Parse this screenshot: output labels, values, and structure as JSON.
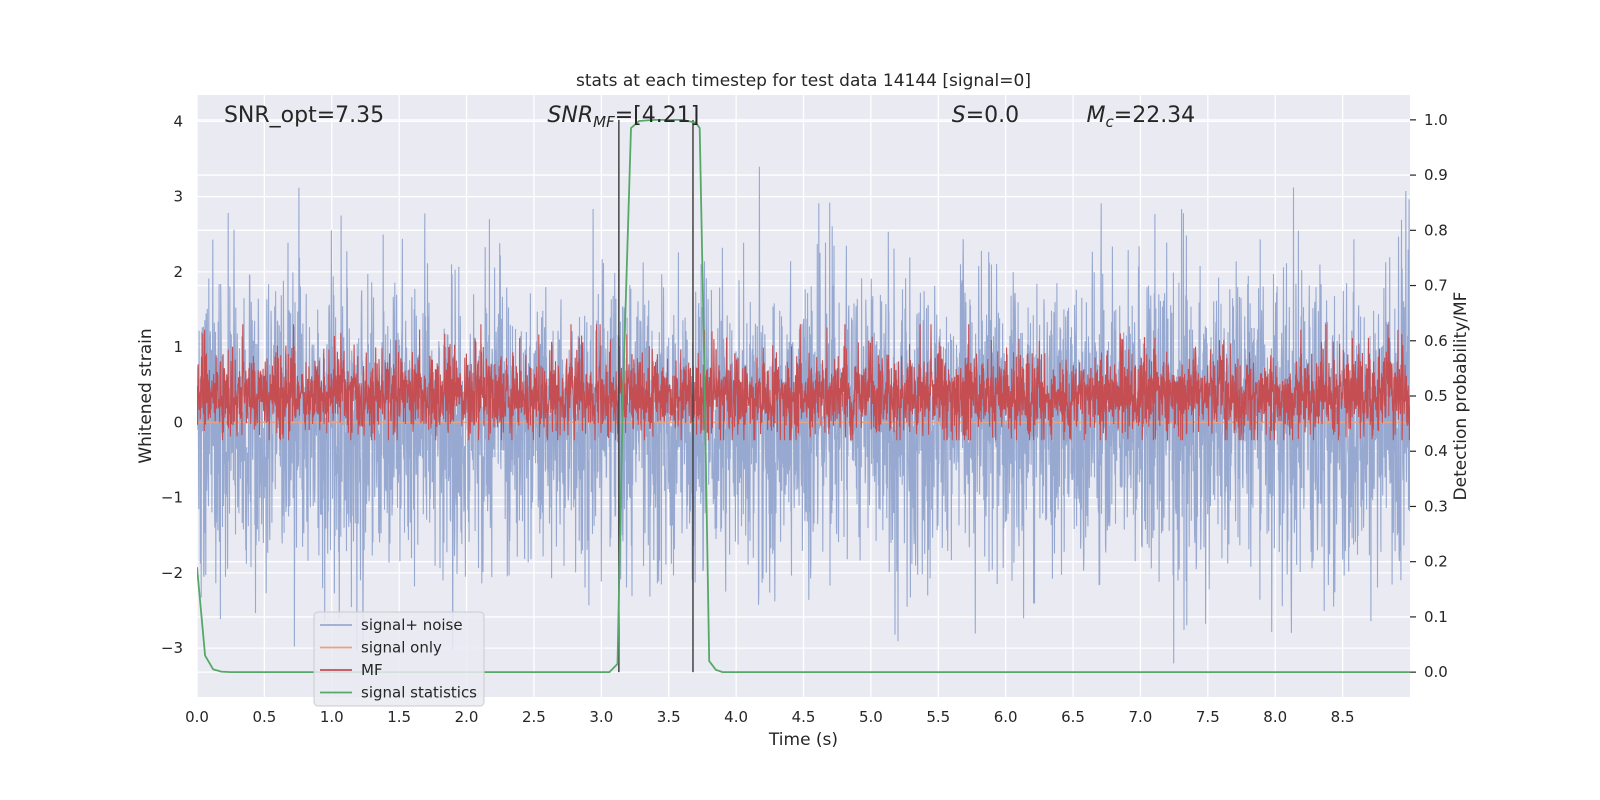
{
  "chart_data": {
    "type": "line",
    "title": "stats at each timestep for test data 14144 [signal=0]",
    "xlabel": "Time (s)",
    "ylabel": "Whitened strain",
    "y2label": "Detection probability/MF",
    "xlim": [
      0.0,
      9.0
    ],
    "ylim": [
      -3.65,
      4.35
    ],
    "y2lim": [
      -0.045,
      1.045
    ],
    "x_ticks": [
      "0.0",
      "0.5",
      "1.0",
      "1.5",
      "2.0",
      "2.5",
      "3.0",
      "3.5",
      "4.0",
      "4.5",
      "5.0",
      "5.5",
      "6.0",
      "6.5",
      "7.0",
      "7.5",
      "8.0",
      "8.5"
    ],
    "y_ticks": [
      "−3",
      "−2",
      "−1",
      "0",
      "1",
      "2",
      "3",
      "4"
    ],
    "y2_ticks": [
      "0.0",
      "0.1",
      "0.2",
      "0.3",
      "0.4",
      "0.5",
      "0.6",
      "0.7",
      "0.8",
      "0.9",
      "1.0"
    ],
    "grid": true,
    "legend_position": "lower-left",
    "annotations": {
      "snr_opt": "SNR_opt=7.35",
      "snr_mf_main": "SNR",
      "snr_mf_sub": "MF",
      "snr_mf_tail": "=[4.21]",
      "s_main": "S",
      "s_tail": "=0.0",
      "mc_main": "M",
      "mc_sub": "c",
      "mc_tail": "=22.34"
    },
    "vlines": [
      3.13,
      3.68
    ],
    "colors": {
      "noise": "#97a9d0",
      "signal_only": "#e8a384",
      "mf": "#c44e52",
      "stat": "#55a868",
      "vline": "#444444",
      "plot_bg": "#eaeaf2",
      "grid": "#ffffff"
    },
    "series": [
      {
        "name": "signal+ noise",
        "axis": "left",
        "noise_sigma": 1.0,
        "noise_range": [
          -3.35,
          4.0
        ],
        "x_range": [
          0.0,
          9.0
        ],
        "points": 4000
      },
      {
        "name": "signal only",
        "axis": "left",
        "x": [
          0.0,
          9.0
        ],
        "y": [
          0.0,
          0.0
        ]
      },
      {
        "name": "MF",
        "axis": "right",
        "baseline": 0.5,
        "range": [
          0.42,
          0.63
        ],
        "x_range": [
          0.0,
          9.0
        ],
        "points": 4000
      },
      {
        "name": "signal statistics",
        "axis": "right",
        "x": [
          0.0,
          0.06,
          0.12,
          0.18,
          0.25,
          0.4,
          0.8,
          1.5,
          2.0,
          2.5,
          3.0,
          3.06,
          3.12,
          3.16,
          3.22,
          3.28,
          3.4,
          3.5,
          3.6,
          3.7,
          3.73,
          3.76,
          3.8,
          3.85,
          3.9,
          4.2,
          5.0,
          6.0,
          7.0,
          8.0,
          9.0
        ],
        "y": [
          0.19,
          0.03,
          0.005,
          0.001,
          0.0,
          0.0,
          0.0,
          0.0,
          0.0,
          0.0,
          0.0,
          0.0,
          0.015,
          0.5,
          0.985,
          0.998,
          1.0,
          1.0,
          1.0,
          0.995,
          0.985,
          0.6,
          0.02,
          0.004,
          0.0,
          0.0,
          0.0,
          0.0,
          0.0,
          0.0,
          0.0
        ]
      }
    ]
  }
}
